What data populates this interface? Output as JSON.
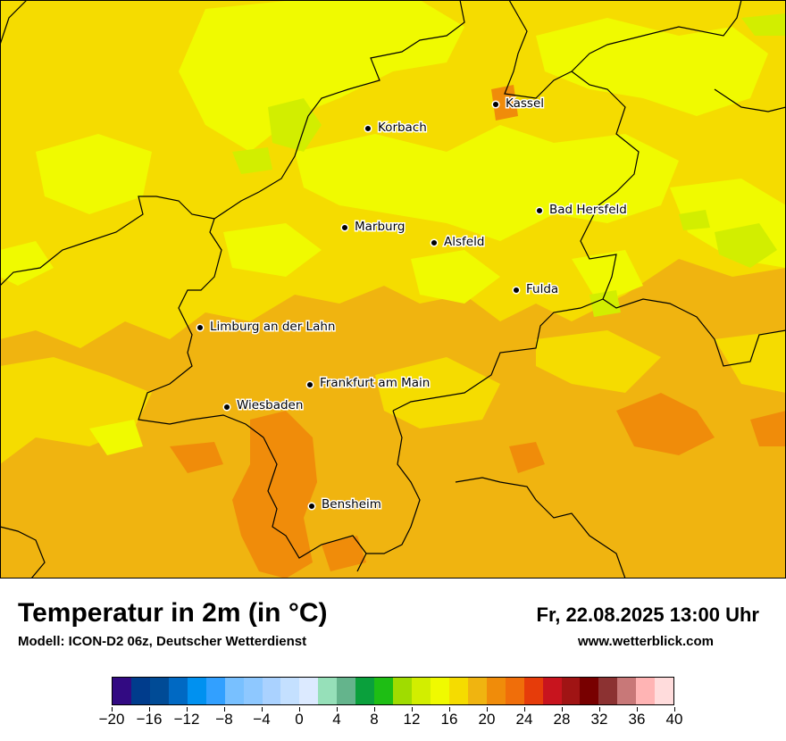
{
  "map": {
    "cities": [
      {
        "name": "Kassel"
      },
      {
        "name": "Korbach"
      },
      {
        "name": "Bad Hersfeld"
      },
      {
        "name": "Marburg"
      },
      {
        "name": "Alsfeld"
      },
      {
        "name": "Fulda"
      },
      {
        "name": "Limburg an der Lahn"
      },
      {
        "name": "Frankfurt am Main"
      },
      {
        "name": "Wiesbaden"
      },
      {
        "name": "Bensheim"
      }
    ]
  },
  "footer": {
    "title": "Temperatur in 2m (in °C)",
    "subtitle": "Modell: ICON-D2 06z, Deutscher Wetterdienst",
    "valid_time": "Fr, 22.08.2025 13:00 Uhr",
    "website": "www.wetterblick.com"
  },
  "legend": {
    "colors": [
      "#320a82",
      "#003c8c",
      "#004b96",
      "#0069c3",
      "#0091f0",
      "#32a0ff",
      "#78c0ff",
      "#8ec8ff",
      "#aad2ff",
      "#c4e0ff",
      "#dceaff",
      "#96e0b9",
      "#64b48c",
      "#0aa03c",
      "#1ebe14",
      "#a0dc00",
      "#d2ee00",
      "#f0fa00",
      "#f5dc00",
      "#f0b410",
      "#f08c0a",
      "#f06e0a",
      "#e63c0a",
      "#c8141e",
      "#a01414",
      "#780000",
      "#8c3232",
      "#c87878",
      "#ffb4b4",
      "#ffdcdc"
    ],
    "tick_labels": [
      "−20",
      "−16",
      "−12",
      "−8",
      "−4",
      "0",
      "4",
      "8",
      "12",
      "16",
      "20",
      "24",
      "28",
      "32",
      "36",
      "40"
    ]
  },
  "colors": {
    "orange": "#f0b410",
    "yellow_orange": "#f5dc00",
    "yellow": "#f0fa00",
    "lime": "#d2ee00",
    "dark_orange": "#f08c0a",
    "border": "#000000"
  }
}
